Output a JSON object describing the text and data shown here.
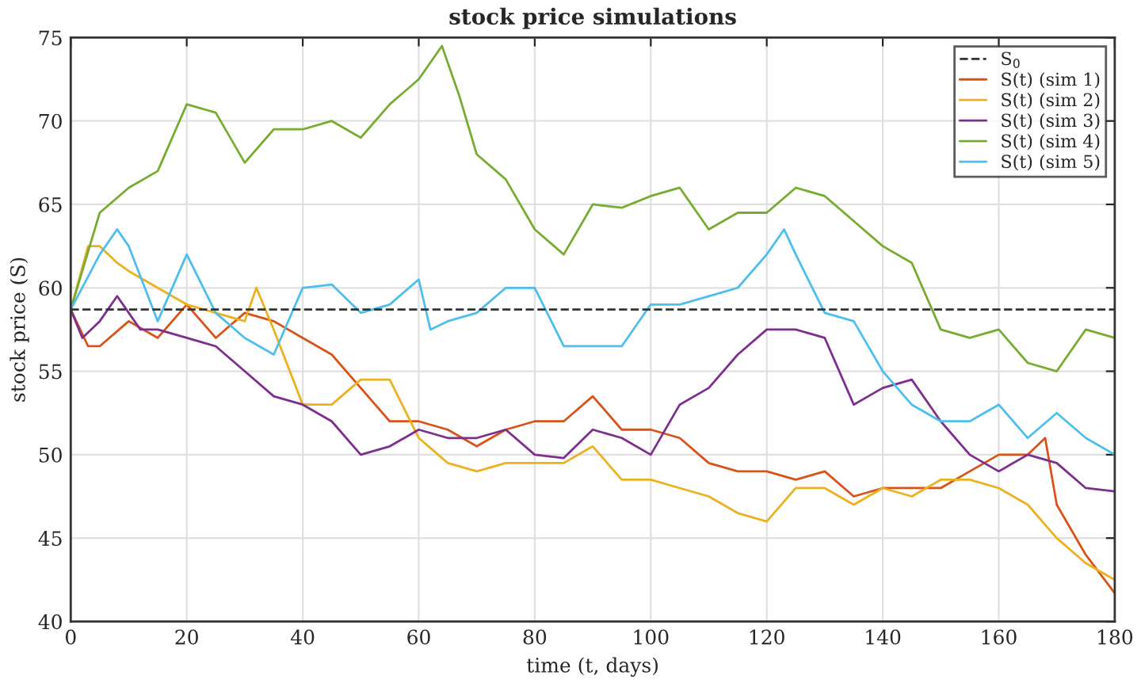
{
  "chart_data": {
    "type": "line",
    "title": "stock price simulations",
    "xlabel": "time (t, days)",
    "ylabel": "stock price (S)",
    "xlim": [
      0,
      180
    ],
    "ylim": [
      40,
      75
    ],
    "xticks": [
      0,
      20,
      40,
      60,
      80,
      100,
      120,
      140,
      160,
      180
    ],
    "yticks": [
      40,
      45,
      50,
      55,
      60,
      65,
      70,
      75
    ],
    "grid": true,
    "legend": "top right",
    "line_style": "solid",
    "marker": "none",
    "ref_lines": [
      {
        "axis": "y",
        "value": 58.7,
        "label": "S$_{0}$",
        "color": "#333333",
        "line_style": "dashed"
      }
    ],
    "series": [
      {
        "name": "S(t) (sim 1)",
        "color": "#d95319",
        "x": [
          0,
          3,
          5,
          10,
          15,
          20,
          25,
          30,
          35,
          40,
          45,
          50,
          55,
          60,
          65,
          70,
          75,
          80,
          85,
          90,
          95,
          100,
          105,
          110,
          115,
          120,
          125,
          130,
          135,
          140,
          145,
          150,
          155,
          160,
          165,
          168,
          170,
          175,
          180
        ],
        "values": [
          58.7,
          56.5,
          56.5,
          58,
          57,
          59,
          57,
          58.5,
          58,
          57,
          56,
          54,
          52,
          52,
          51.5,
          50.5,
          51.5,
          52,
          52,
          53.5,
          51.5,
          51.5,
          51,
          49.5,
          49,
          49,
          48.5,
          49,
          47.5,
          48,
          48,
          48,
          49,
          50,
          50,
          51,
          47,
          44,
          41.7
        ]
      },
      {
        "name": "S(t) (sim 2)",
        "color": "#edb120",
        "x": [
          0,
          3,
          5,
          8,
          10,
          15,
          20,
          25,
          30,
          32,
          35,
          40,
          45,
          50,
          55,
          60,
          65,
          70,
          75,
          80,
          85,
          90,
          95,
          100,
          105,
          110,
          115,
          120,
          125,
          130,
          135,
          140,
          145,
          150,
          155,
          160,
          165,
          170,
          175,
          180
        ],
        "values": [
          58.7,
          62.5,
          62.5,
          61.5,
          61,
          60,
          59,
          58.5,
          58,
          60,
          57.5,
          53,
          53,
          54.5,
          54.5,
          51,
          49.5,
          49,
          49.5,
          49.5,
          49.5,
          50.5,
          48.5,
          48.5,
          48,
          47.5,
          46.5,
          46,
          48,
          48,
          47,
          48,
          47.5,
          48.5,
          48.5,
          48,
          47,
          45,
          43.5,
          42.5
        ]
      },
      {
        "name": "S(t) (sim 3)",
        "color": "#7e2f8e",
        "x": [
          0,
          2,
          5,
          8,
          12,
          15,
          20,
          25,
          30,
          35,
          40,
          45,
          50,
          55,
          60,
          65,
          70,
          75,
          80,
          85,
          90,
          95,
          100,
          105,
          110,
          115,
          120,
          125,
          130,
          135,
          140,
          145,
          150,
          155,
          160,
          165,
          170,
          175,
          180
        ],
        "values": [
          58.7,
          57,
          58,
          59.5,
          57.5,
          57.5,
          57,
          56.5,
          55,
          53.5,
          53,
          52,
          50,
          50.5,
          51.5,
          51,
          51,
          51.5,
          50,
          49.8,
          51.5,
          51,
          50,
          53,
          54,
          56,
          57.5,
          57.5,
          57,
          53,
          54,
          54.5,
          52,
          50,
          49,
          50,
          49.5,
          48,
          47.8
        ]
      },
      {
        "name": "S(t) (sim 4)",
        "color": "#77ac30",
        "x": [
          0,
          5,
          10,
          15,
          20,
          25,
          30,
          35,
          40,
          45,
          50,
          55,
          60,
          64,
          67,
          70,
          75,
          80,
          85,
          90,
          95,
          100,
          105,
          110,
          115,
          120,
          125,
          130,
          135,
          140,
          145,
          150,
          155,
          160,
          165,
          170,
          175,
          180
        ],
        "values": [
          58.7,
          64.5,
          66,
          67,
          71,
          70.5,
          67.5,
          69.5,
          69.5,
          70,
          69,
          71,
          72.5,
          74.5,
          71.5,
          68,
          66.5,
          63.5,
          62,
          65,
          64.8,
          65.5,
          66,
          63.5,
          64.5,
          64.5,
          66,
          65.5,
          64,
          62.5,
          61.5,
          57.5,
          57,
          57.5,
          55.5,
          55,
          57.5,
          57
        ]
      },
      {
        "name": "S(t) (sim 5)",
        "color": "#4dbeee",
        "x": [
          0,
          5,
          8,
          10,
          15,
          20,
          25,
          30,
          35,
          40,
          45,
          50,
          55,
          60,
          62,
          65,
          70,
          75,
          80,
          85,
          90,
          95,
          100,
          105,
          110,
          115,
          120,
          123,
          125,
          130,
          135,
          140,
          145,
          150,
          155,
          160,
          165,
          170,
          175,
          180
        ],
        "values": [
          58.7,
          62,
          63.5,
          62.5,
          58,
          62,
          58.5,
          57,
          56,
          60,
          60.2,
          58.5,
          59,
          60.5,
          57.5,
          58,
          58.5,
          60,
          60,
          56.5,
          56.5,
          56.5,
          59,
          59,
          59.5,
          60,
          62,
          63.5,
          62,
          58.5,
          58,
          55,
          53,
          52,
          52,
          53,
          51,
          52.5,
          51,
          50
        ]
      }
    ]
  }
}
